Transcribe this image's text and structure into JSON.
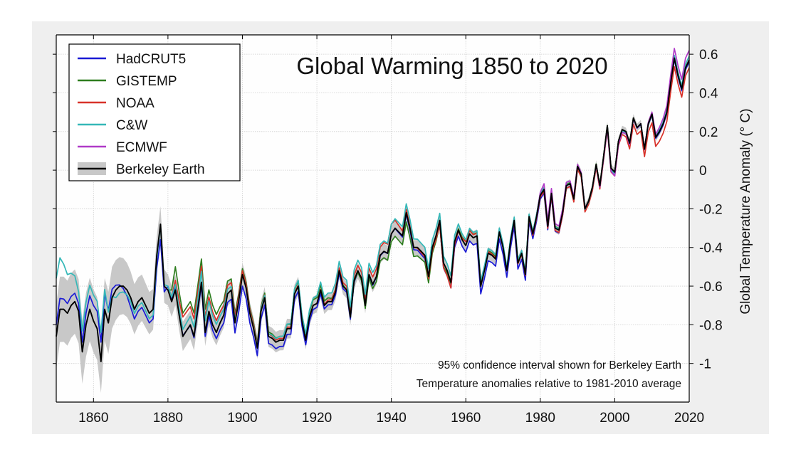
{
  "chart_data": {
    "type": "line",
    "title": "Global Warming 1850 to 2020",
    "xlabel": "",
    "ylabel": "Global Temperature Anomaly (° C)",
    "xlim": [
      1850,
      2020
    ],
    "ylim": [
      -1.2,
      0.7
    ],
    "x_ticks": [
      1860,
      1880,
      1900,
      1920,
      1940,
      1960,
      1980,
      2000,
      2020
    ],
    "y_ticks": [
      0.6,
      0.4,
      0.2,
      0,
      -0.2,
      -0.4,
      -0.6,
      -0.8,
      -1
    ],
    "y_tick_labels": [
      "0.6",
      "0.4",
      "0.2",
      "0",
      "-0.2",
      "-0.4",
      "-0.6",
      "-0.8",
      "-1"
    ],
    "x_tick_labels": [
      "1860",
      "1880",
      "1900",
      "1920",
      "1940",
      "1960",
      "1980",
      "2000",
      "2020"
    ],
    "grid": true,
    "legend_position": "top-left",
    "notes": [
      "95% confidence interval shown for Berkeley Earth",
      "Temperature anomalies relative to 1981-2010 average"
    ],
    "confidence_band": {
      "series": "Berkeley Earth",
      "color": "#c8c8c8",
      "half_width_by_year": [
        [
          1850,
          0.17
        ],
        [
          1865,
          0.16
        ],
        [
          1877,
          0.1
        ],
        [
          1880,
          0.08
        ],
        [
          1900,
          0.06
        ],
        [
          1920,
          0.045
        ],
        [
          1940,
          0.04
        ],
        [
          1960,
          0.035
        ],
        [
          1980,
          0.025
        ],
        [
          2000,
          0.02
        ],
        [
          2020,
          0.02
        ]
      ]
    },
    "berkeley_earth": [
      [
        1850,
        -0.86
      ],
      [
        1851,
        -0.72
      ],
      [
        1852,
        -0.72
      ],
      [
        1853,
        -0.74
      ],
      [
        1854,
        -0.7
      ],
      [
        1855,
        -0.68
      ],
      [
        1856,
        -0.73
      ],
      [
        1857,
        -0.94
      ],
      [
        1858,
        -0.8
      ],
      [
        1859,
        -0.72
      ],
      [
        1860,
        -0.78
      ],
      [
        1861,
        -0.82
      ],
      [
        1862,
        -0.99
      ],
      [
        1863,
        -0.72
      ],
      [
        1864,
        -0.79
      ],
      [
        1865,
        -0.66
      ],
      [
        1866,
        -0.62
      ],
      [
        1867,
        -0.6
      ],
      [
        1868,
        -0.6
      ],
      [
        1869,
        -0.62
      ],
      [
        1870,
        -0.66
      ],
      [
        1871,
        -0.72
      ],
      [
        1872,
        -0.68
      ],
      [
        1873,
        -0.66
      ],
      [
        1874,
        -0.7
      ],
      [
        1875,
        -0.74
      ],
      [
        1876,
        -0.72
      ],
      [
        1877,
        -0.44
      ],
      [
        1878,
        -0.28
      ],
      [
        1879,
        -0.6
      ],
      [
        1880,
        -0.62
      ],
      [
        1881,
        -0.68
      ],
      [
        1882,
        -0.62
      ],
      [
        1883,
        -0.75
      ],
      [
        1884,
        -0.86
      ],
      [
        1885,
        -0.83
      ],
      [
        1886,
        -0.8
      ],
      [
        1887,
        -0.86
      ],
      [
        1888,
        -0.72
      ],
      [
        1889,
        -0.58
      ],
      [
        1890,
        -0.84
      ],
      [
        1891,
        -0.73
      ],
      [
        1892,
        -0.8
      ],
      [
        1893,
        -0.84
      ],
      [
        1894,
        -0.79
      ],
      [
        1895,
        -0.75
      ],
      [
        1896,
        -0.64
      ],
      [
        1897,
        -0.62
      ],
      [
        1898,
        -0.79
      ],
      [
        1899,
        -0.68
      ],
      [
        1900,
        -0.54
      ],
      [
        1901,
        -0.61
      ],
      [
        1902,
        -0.74
      ],
      [
        1903,
        -0.82
      ],
      [
        1904,
        -0.92
      ],
      [
        1905,
        -0.73
      ],
      [
        1906,
        -0.66
      ],
      [
        1907,
        -0.86
      ],
      [
        1908,
        -0.87
      ],
      [
        1909,
        -0.89
      ],
      [
        1910,
        -0.88
      ],
      [
        1911,
        -0.88
      ],
      [
        1912,
        -0.82
      ],
      [
        1913,
        -0.82
      ],
      [
        1914,
        -0.64
      ],
      [
        1915,
        -0.6
      ],
      [
        1916,
        -0.78
      ],
      [
        1917,
        -0.88
      ],
      [
        1918,
        -0.76
      ],
      [
        1919,
        -0.7
      ],
      [
        1920,
        -0.69
      ],
      [
        1921,
        -0.62
      ],
      [
        1922,
        -0.7
      ],
      [
        1923,
        -0.68
      ],
      [
        1924,
        -0.68
      ],
      [
        1925,
        -0.63
      ],
      [
        1926,
        -0.52
      ],
      [
        1927,
        -0.6
      ],
      [
        1928,
        -0.62
      ],
      [
        1929,
        -0.76
      ],
      [
        1930,
        -0.57
      ],
      [
        1931,
        -0.52
      ],
      [
        1932,
        -0.56
      ],
      [
        1933,
        -0.7
      ],
      [
        1934,
        -0.54
      ],
      [
        1935,
        -0.59
      ],
      [
        1936,
        -0.55
      ],
      [
        1937,
        -0.44
      ],
      [
        1938,
        -0.42
      ],
      [
        1939,
        -0.43
      ],
      [
        1940,
        -0.33
      ],
      [
        1941,
        -0.3
      ],
      [
        1942,
        -0.32
      ],
      [
        1943,
        -0.34
      ],
      [
        1944,
        -0.22
      ],
      [
        1945,
        -0.3
      ],
      [
        1946,
        -0.4
      ],
      [
        1947,
        -0.4
      ],
      [
        1948,
        -0.42
      ],
      [
        1949,
        -0.44
      ],
      [
        1950,
        -0.55
      ],
      [
        1951,
        -0.4
      ],
      [
        1952,
        -0.34
      ],
      [
        1953,
        -0.26
      ],
      [
        1954,
        -0.48
      ],
      [
        1955,
        -0.52
      ],
      [
        1956,
        -0.58
      ],
      [
        1957,
        -0.37
      ],
      [
        1958,
        -0.31
      ],
      [
        1959,
        -0.36
      ],
      [
        1960,
        -0.39
      ],
      [
        1961,
        -0.33
      ],
      [
        1962,
        -0.35
      ],
      [
        1963,
        -0.34
      ],
      [
        1964,
        -0.6
      ],
      [
        1965,
        -0.52
      ],
      [
        1966,
        -0.43
      ],
      [
        1967,
        -0.44
      ],
      [
        1968,
        -0.46
      ],
      [
        1969,
        -0.32
      ],
      [
        1970,
        -0.4
      ],
      [
        1971,
        -0.52
      ],
      [
        1972,
        -0.37
      ],
      [
        1973,
        -0.26
      ],
      [
        1974,
        -0.48
      ],
      [
        1975,
        -0.43
      ],
      [
        1976,
        -0.54
      ],
      [
        1977,
        -0.24
      ],
      [
        1978,
        -0.33
      ],
      [
        1979,
        -0.24
      ],
      [
        1980,
        -0.13
      ],
      [
        1981,
        -0.1
      ],
      [
        1982,
        -0.29
      ],
      [
        1983,
        -0.12
      ],
      [
        1984,
        -0.3
      ],
      [
        1985,
        -0.31
      ],
      [
        1986,
        -0.22
      ],
      [
        1987,
        -0.08
      ],
      [
        1988,
        -0.07
      ],
      [
        1989,
        -0.15
      ],
      [
        1990,
        0.02
      ],
      [
        1991,
        -0.02
      ],
      [
        1992,
        -0.2
      ],
      [
        1993,
        -0.16
      ],
      [
        1994,
        -0.09
      ],
      [
        1995,
        0.03
      ],
      [
        1996,
        -0.08
      ],
      [
        1997,
        0.07
      ],
      [
        1998,
        0.23
      ],
      [
        1999,
        0.01
      ],
      [
        2000,
        -0.01
      ],
      [
        2001,
        0.15
      ],
      [
        2002,
        0.21
      ],
      [
        2003,
        0.2
      ],
      [
        2004,
        0.14
      ],
      [
        2005,
        0.27
      ],
      [
        2006,
        0.22
      ],
      [
        2007,
        0.24
      ],
      [
        2008,
        0.11
      ],
      [
        2009,
        0.24
      ],
      [
        2010,
        0.29
      ],
      [
        2011,
        0.17
      ],
      [
        2012,
        0.2
      ],
      [
        2013,
        0.24
      ],
      [
        2014,
        0.3
      ],
      [
        2015,
        0.45
      ],
      [
        2016,
        0.58
      ],
      [
        2017,
        0.49
      ],
      [
        2018,
        0.42
      ],
      [
        2019,
        0.53
      ],
      [
        2020,
        0.57
      ]
    ],
    "series": [
      {
        "name": "HadCRUT5",
        "color": "#1a1ad4",
        "start": 1850,
        "offsets": [
          [
            1850,
            0.06
          ],
          [
            1856,
            0.04
          ],
          [
            1862,
            0.1
          ],
          [
            1870,
            -0.05
          ],
          [
            1876,
            -0.05
          ],
          [
            1878,
            -0.08
          ],
          [
            1880,
            0.02
          ],
          [
            1900,
            -0.06
          ],
          [
            1904,
            -0.04
          ],
          [
            1920,
            -0.02
          ],
          [
            1940,
            0.0
          ],
          [
            1950,
            -0.02
          ],
          [
            1964,
            -0.04
          ],
          [
            1976,
            -0.03
          ],
          [
            1980,
            -0.02
          ],
          [
            2000,
            0.0
          ],
          [
            2020,
            -0.01
          ]
        ]
      },
      {
        "name": "GISTEMP",
        "color": "#2e7d1f",
        "start": 1880,
        "offsets": [
          [
            1880,
            0.0
          ],
          [
            1882,
            0.12
          ],
          [
            1884,
            0.12
          ],
          [
            1890,
            0.12
          ],
          [
            1900,
            0.03
          ],
          [
            1910,
            0.02
          ],
          [
            1920,
            0.03
          ],
          [
            1940,
            -0.04
          ],
          [
            1945,
            -0.05
          ],
          [
            1954,
            -0.02
          ],
          [
            1960,
            0.02
          ],
          [
            1970,
            0.01
          ],
          [
            1980,
            0.01
          ],
          [
            2000,
            0.0
          ],
          [
            2020,
            0.0
          ]
        ]
      },
      {
        "name": "NOAA",
        "color": "#d8322a",
        "start": 1880,
        "offsets": [
          [
            1880,
            0.0
          ],
          [
            1884,
            0.1
          ],
          [
            1890,
            0.08
          ],
          [
            1900,
            0.02
          ],
          [
            1920,
            0.0
          ],
          [
            1940,
            0.05
          ],
          [
            1946,
            0.0
          ],
          [
            1956,
            -0.03
          ],
          [
            1960,
            0.02
          ],
          [
            1970,
            0.0
          ],
          [
            1980,
            -0.01
          ],
          [
            2000,
            -0.02
          ],
          [
            2012,
            -0.05
          ],
          [
            2020,
            -0.04
          ]
        ]
      },
      {
        "name": "C&W",
        "color": "#35b8b8",
        "start": 1850,
        "offsets": [
          [
            1850,
            0.3
          ],
          [
            1856,
            0.1
          ],
          [
            1862,
            0.15
          ],
          [
            1866,
            -0.04
          ],
          [
            1870,
            -0.02
          ],
          [
            1876,
            -0.03
          ],
          [
            1880,
            0.02
          ],
          [
            1890,
            0.06
          ],
          [
            1900,
            0.0
          ],
          [
            1920,
            0.04
          ],
          [
            1935,
            0.06
          ],
          [
            1940,
            0.05
          ],
          [
            1960,
            0.03
          ],
          [
            1980,
            0.01
          ],
          [
            2000,
            -0.01
          ],
          [
            2020,
            0.02
          ]
        ]
      },
      {
        "name": "ECMWF",
        "color": "#b03ac8",
        "start": 1979,
        "offsets": [
          [
            1979,
            0.0
          ],
          [
            1981,
            0.03
          ],
          [
            1990,
            0.01
          ],
          [
            2000,
            -0.02
          ],
          [
            2010,
            0.01
          ],
          [
            2015,
            0.04
          ],
          [
            2016,
            0.05
          ],
          [
            2020,
            0.05
          ]
        ]
      }
    ],
    "legend": [
      {
        "name": "HadCRUT5",
        "color": "#1a1ad4"
      },
      {
        "name": "GISTEMP",
        "color": "#2e7d1f"
      },
      {
        "name": "NOAA",
        "color": "#d8322a"
      },
      {
        "name": "C&W",
        "color": "#35b8b8"
      },
      {
        "name": "ECMWF",
        "color": "#b03ac8"
      },
      {
        "name": "Berkeley Earth",
        "color": "#000000",
        "band_color": "#c8c8c8"
      }
    ]
  }
}
